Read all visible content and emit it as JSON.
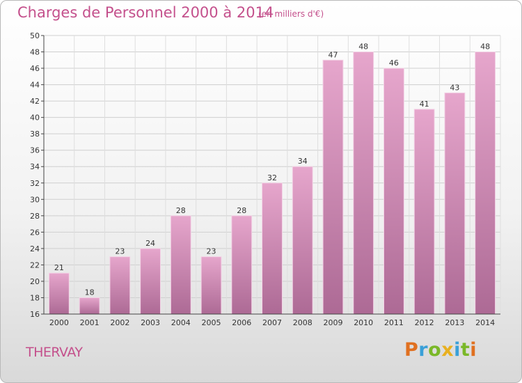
{
  "header": {
    "title": "Charges de Personnel 2000 à 2014",
    "subtitle": "(en milliers d'€)"
  },
  "commune": "THERVAY",
  "logo": {
    "text": "Proxiti",
    "colors": [
      "#e07020",
      "#3aa0d8",
      "#7ab828",
      "#e8b020",
      "#3aa0d8",
      "#7ab828",
      "#e07020"
    ]
  },
  "colors": {
    "accent": "#c4508c",
    "bar_top": "#e6a6cc",
    "bar_bottom": "#ad6a95"
  },
  "chart_data": {
    "type": "bar",
    "categories": [
      "2000",
      "2001",
      "2002",
      "2003",
      "2004",
      "2005",
      "2006",
      "2007",
      "2008",
      "2009",
      "2010",
      "2011",
      "2012",
      "2013",
      "2014"
    ],
    "values": [
      21,
      18,
      23,
      24,
      28,
      23,
      28,
      32,
      34,
      47,
      48,
      46,
      41,
      43,
      48
    ],
    "title": "Charges de Personnel 2000 à 2014",
    "subtitle": "(en milliers d'€)",
    "xlabel": "",
    "ylabel": "",
    "ylim": [
      16,
      50
    ],
    "yticks": [
      16,
      18,
      20,
      22,
      24,
      26,
      28,
      30,
      32,
      34,
      36,
      38,
      40,
      42,
      44,
      46,
      48,
      50
    ],
    "grid": true,
    "data_labels": true
  }
}
